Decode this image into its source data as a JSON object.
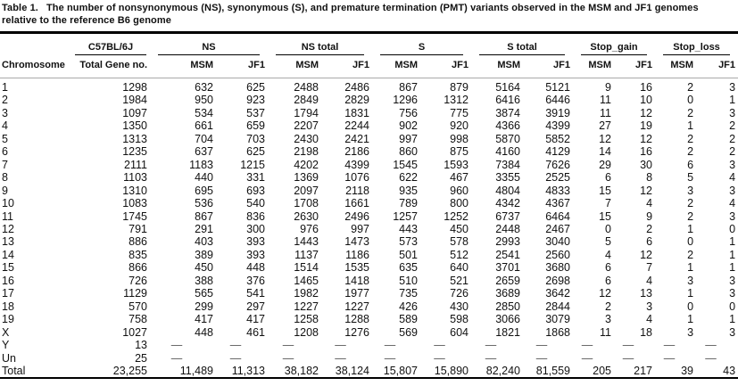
{
  "caption": {
    "label": "Table 1.",
    "text": "The number of nonsynonymous (NS), synonymous (S), and premature termination (PMT) variants observed in the MSM and JF1 genomes relative to the reference B6 genome"
  },
  "colors": {
    "text": "#111111",
    "background": "#ffffff",
    "heavy_rule": "#000000",
    "header_hairline": "#a9a9a9"
  },
  "table": {
    "group_headers": [
      "C57BL/6J",
      "NS",
      "NS total",
      "S",
      "S total",
      "Stop_gain",
      "Stop_loss"
    ],
    "sub_headers": [
      "Chromosome",
      "Total Gene no.",
      "MSM",
      "JF1",
      "MSM",
      "JF1",
      "MSM",
      "JF1",
      "MSM",
      "JF1",
      "MSM",
      "JF1",
      "MSM",
      "JF1"
    ],
    "rows": [
      [
        "1",
        "1298",
        "632",
        "625",
        "2488",
        "2486",
        "867",
        "879",
        "5164",
        "5121",
        "9",
        "16",
        "2",
        "3"
      ],
      [
        "2",
        "1984",
        "950",
        "923",
        "2849",
        "2829",
        "1296",
        "1312",
        "6416",
        "6446",
        "11",
        "10",
        "0",
        "1"
      ],
      [
        "3",
        "1097",
        "534",
        "537",
        "1794",
        "1831",
        "756",
        "775",
        "3874",
        "3919",
        "11",
        "12",
        "2",
        "3"
      ],
      [
        "4",
        "1350",
        "661",
        "659",
        "2207",
        "2244",
        "902",
        "920",
        "4366",
        "4399",
        "27",
        "19",
        "1",
        "2"
      ],
      [
        "5",
        "1313",
        "704",
        "703",
        "2430",
        "2421",
        "997",
        "998",
        "5870",
        "5852",
        "12",
        "12",
        "2",
        "2"
      ],
      [
        "6",
        "1235",
        "637",
        "625",
        "2198",
        "2186",
        "860",
        "875",
        "4160",
        "4129",
        "14",
        "16",
        "2",
        "2"
      ],
      [
        "7",
        "2111",
        "1183",
        "1215",
        "4202",
        "4399",
        "1545",
        "1593",
        "7384",
        "7626",
        "29",
        "30",
        "6",
        "3"
      ],
      [
        "8",
        "1103",
        "440",
        "331",
        "1369",
        "1076",
        "622",
        "467",
        "3355",
        "2525",
        "6",
        "8",
        "5",
        "4"
      ],
      [
        "9",
        "1310",
        "695",
        "693",
        "2097",
        "2118",
        "935",
        "960",
        "4804",
        "4833",
        "15",
        "12",
        "3",
        "3"
      ],
      [
        "10",
        "1083",
        "536",
        "540",
        "1708",
        "1661",
        "789",
        "800",
        "4342",
        "4367",
        "7",
        "4",
        "2",
        "4"
      ],
      [
        "11",
        "1745",
        "867",
        "836",
        "2630",
        "2496",
        "1257",
        "1252",
        "6737",
        "6464",
        "15",
        "9",
        "2",
        "3"
      ],
      [
        "12",
        "791",
        "291",
        "300",
        "976",
        "997",
        "443",
        "450",
        "2448",
        "2467",
        "0",
        "2",
        "1",
        "0"
      ],
      [
        "13",
        "886",
        "403",
        "393",
        "1443",
        "1473",
        "573",
        "578",
        "2993",
        "3040",
        "5",
        "6",
        "0",
        "1"
      ],
      [
        "14",
        "835",
        "389",
        "393",
        "1137",
        "1186",
        "501",
        "512",
        "2541",
        "2560",
        "4",
        "12",
        "2",
        "1"
      ],
      [
        "15",
        "866",
        "450",
        "448",
        "1514",
        "1535",
        "635",
        "640",
        "3701",
        "3680",
        "6",
        "7",
        "1",
        "1"
      ],
      [
        "16",
        "726",
        "388",
        "376",
        "1465",
        "1418",
        "510",
        "521",
        "2659",
        "2698",
        "6",
        "4",
        "3",
        "3"
      ],
      [
        "17",
        "1129",
        "565",
        "541",
        "1982",
        "1977",
        "735",
        "726",
        "3689",
        "3642",
        "12",
        "13",
        "1",
        "3"
      ],
      [
        "18",
        "570",
        "299",
        "297",
        "1227",
        "1227",
        "426",
        "430",
        "2850",
        "2844",
        "2",
        "3",
        "0",
        "0"
      ],
      [
        "19",
        "758",
        "417",
        "417",
        "1258",
        "1288",
        "589",
        "598",
        "3066",
        "3079",
        "3",
        "4",
        "1",
        "1"
      ],
      [
        "X",
        "1027",
        "448",
        "461",
        "1208",
        "1276",
        "569",
        "604",
        "1821",
        "1868",
        "11",
        "18",
        "3",
        "3"
      ],
      [
        "Y",
        "13",
        "—",
        "—",
        "—",
        "—",
        "—",
        "—",
        "—",
        "—",
        "—",
        "—",
        "—",
        "—"
      ],
      [
        "Un",
        "25",
        "—",
        "—",
        "—",
        "—",
        "—",
        "—",
        "—",
        "—",
        "—",
        "—",
        "—",
        "—"
      ],
      [
        "Total",
        "23,255",
        "11,489",
        "11,313",
        "38,182",
        "38,124",
        "15,807",
        "15,890",
        "82,240",
        "81,559",
        "205",
        "217",
        "39",
        "43"
      ]
    ]
  }
}
